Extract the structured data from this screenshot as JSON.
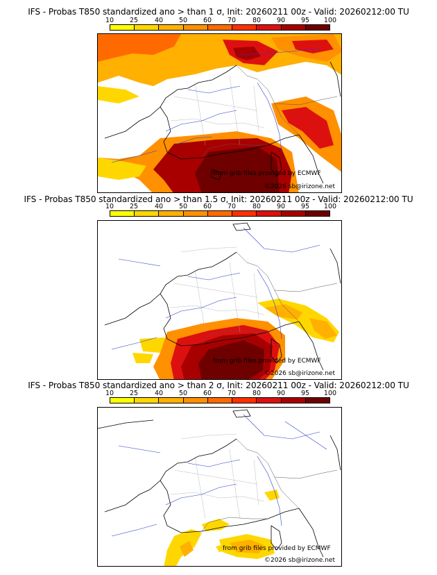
{
  "colorbar": {
    "ticks": [
      "10",
      "25",
      "40",
      "50",
      "60",
      "70",
      "80",
      "90",
      "95",
      "100"
    ],
    "colors": [
      "#ffff00",
      "#ffd700",
      "#ffb000",
      "#ff9000",
      "#ff6a00",
      "#ff3000",
      "#dd1010",
      "#a80000",
      "#6e0000"
    ]
  },
  "panels": [
    {
      "title": "IFS - Probas T850  standardized ano > than 1 σ, Init: 20260211 00z - Valid: 20260212:00 TU",
      "threshold_sigma": 1,
      "credit_line1": "from grib files provided by ECMWF",
      "credit_line2": "©2026 sb@irizone.net"
    },
    {
      "title": "IFS - Probas T850  standardized ano > than 1.5 σ, Init: 20260211 00z - Valid: 20260212:00 TU",
      "threshold_sigma": 1.5,
      "credit_line1": "from grib files provided by ECMWF",
      "credit_line2": "©2026 sb@irizone.net"
    },
    {
      "title": "IFS - Probas T850  standardized ano > than 2 σ, Init: 20260211 00z - Valid: 20260212:00 TU",
      "threshold_sigma": 2,
      "credit_line1": "from grib files provided by ECMWF",
      "credit_line2": "©2026 sb@irizone.net"
    }
  ]
}
